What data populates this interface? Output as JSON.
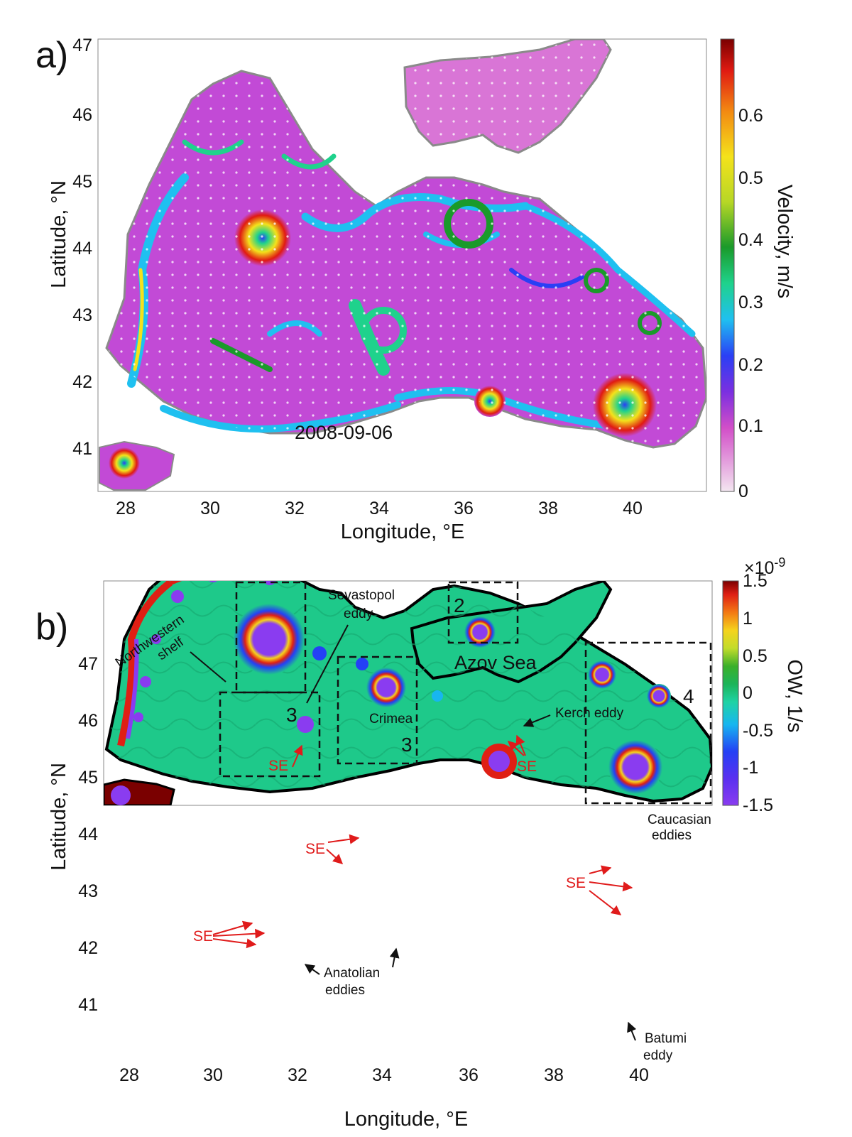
{
  "panel_a": {
    "label": "a)",
    "date": "2008-09-06",
    "xlabel": "Longitude, °E",
    "ylabel": "Latitude, °N",
    "x_ticks": [
      "28",
      "30",
      "32",
      "34",
      "36",
      "38",
      "40"
    ],
    "y_ticks": [
      "41",
      "42",
      "43",
      "44",
      "45",
      "46",
      "47"
    ],
    "colorbar": {
      "label": "Velocity, m/s",
      "ticks": [
        "0",
        "0.1",
        "0.2",
        "0.3",
        "0.4",
        "0.5",
        "0.6"
      ]
    }
  },
  "panel_b": {
    "label": "b)",
    "xlabel": "Longitude, °E",
    "ylabel": "Latitude, °N",
    "x_ticks": [
      "28",
      "30",
      "32",
      "34",
      "36",
      "38",
      "40"
    ],
    "y_ticks": [
      "41",
      "42",
      "43",
      "44",
      "45",
      "46",
      "47"
    ],
    "colorbar": {
      "label": "OW, 1/s",
      "exponent": "×10",
      "exponent_power": "-9",
      "ticks": [
        "-1.5",
        "-1",
        "-0.5",
        "0",
        "0.5",
        "1",
        "1.5"
      ]
    },
    "annotations": {
      "northwestern_shelf_1": "Northwestern",
      "northwestern_shelf_2": "shelf",
      "sevastopol_1": "Sevastopol",
      "sevastopol_2": "eddy",
      "crimea": "Crimea",
      "azov": "Azov Sea",
      "kerch": "Kerch eddy",
      "caucasian_1": "Caucasian",
      "caucasian_2": "eddies",
      "anatolian_1": "Anatolian",
      "anatolian_2": "eddies",
      "batumi_1": "Batumi",
      "batumi_2": "eddy",
      "se": "SE",
      "box_2": "2",
      "box_3": "3",
      "box_4": "4"
    }
  },
  "colors": {
    "land": "#ffffff",
    "coast": "#8a8a8a",
    "coast_b": "#000000",
    "ow_background": "#1ec98a",
    "velocity_background": "#c24ad6",
    "se_arrow": "#e01b1b"
  }
}
